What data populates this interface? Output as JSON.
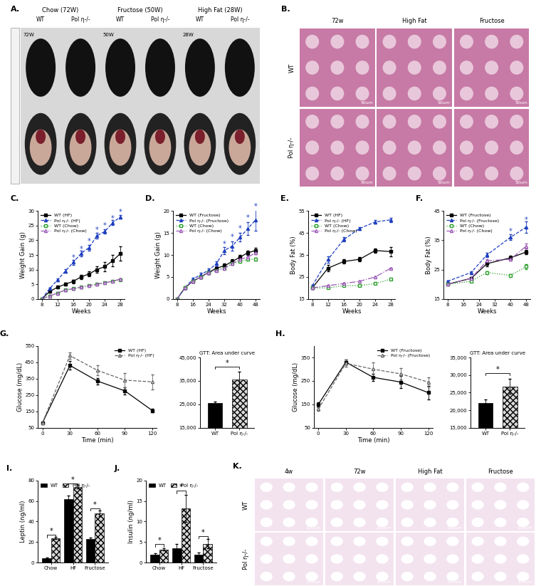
{
  "chart_data": [
    {
      "type": "line",
      "panel_label": "C.",
      "x_label": "Weeks",
      "y_label": "Weight Gain (g)",
      "x": [
        8,
        10,
        12,
        14,
        16,
        18,
        20,
        22,
        24,
        26,
        28
      ],
      "xlim": [
        7,
        29
      ],
      "xticks": [
        8,
        12,
        16,
        20,
        24,
        28
      ],
      "ylim": [
        0,
        30
      ],
      "yticks": [
        0,
        5,
        10,
        15,
        20,
        25,
        30
      ],
      "legend": "upper left",
      "series": [
        {
          "name": "WT (HF)",
          "color": "#000000",
          "marker": "square",
          "line_style": "solid",
          "values": [
            0,
            2.5,
            4,
            5,
            6,
            7.5,
            8.5,
            10,
            11,
            13,
            15.5
          ],
          "errors": [
            0,
            0.3,
            0.4,
            0.5,
            0.6,
            0.7,
            0.8,
            1,
            1.5,
            2,
            2.5
          ]
        },
        {
          "name": "Pol η-/- (HF)",
          "color": "#1f3fbf",
          "marker": "triangle",
          "line_style": "dashed",
          "values": [
            0,
            3.5,
            6.5,
            9.5,
            12.5,
            15.5,
            17.5,
            21.5,
            23,
            26,
            28
          ],
          "errors": [
            0,
            0.3,
            0.5,
            0.6,
            0.8,
            1,
            1,
            1,
            0.8,
            0.8,
            0.6
          ]
        },
        {
          "name": "WT (Chow)",
          "color": "#2ca02c",
          "marker": "open_square",
          "line_style": "dotted",
          "values": [
            0,
            1,
            2,
            3,
            3.5,
            4,
            4.5,
            5,
            5.5,
            6,
            6.5
          ],
          "errors": [
            0,
            0.3,
            0.3,
            0.3,
            0.3,
            0.3,
            0.3,
            0.3,
            0.3,
            0.3,
            0.3
          ]
        },
        {
          "name": "Pol η-/- (Chow)",
          "color": "#9b59b6",
          "marker": "open_triangle",
          "line_style": "dashdot",
          "values": [
            0,
            1,
            2,
            3,
            3.5,
            4,
            4.5,
            5,
            5.5,
            6,
            6.8
          ],
          "errors": [
            0,
            0.3,
            0.3,
            0.3,
            0.3,
            0.3,
            0.3,
            0.3,
            0.3,
            0.3,
            0.3
          ]
        }
      ],
      "annotations": [
        {
          "text": "*",
          "x": 16,
          "y": 14
        },
        {
          "text": "*",
          "x": 18,
          "y": 17
        },
        {
          "text": "*",
          "x": 20,
          "y": 19.5
        },
        {
          "text": "*",
          "x": 22,
          "y": 23.5
        },
        {
          "text": "*",
          "x": 24,
          "y": 25
        },
        {
          "text": "*",
          "x": 26,
          "y": 27.5
        },
        {
          "text": "*",
          "x": 28,
          "y": 29.5
        }
      ]
    },
    {
      "type": "line",
      "panel_label": "D.",
      "x_label": "Weeks",
      "y_label": "Weight Gain (g)",
      "x": [
        8,
        12,
        16,
        20,
        24,
        28,
        32,
        36,
        40,
        44,
        48
      ],
      "xlim": [
        6,
        50
      ],
      "xticks": [
        8,
        16,
        24,
        32,
        40,
        48
      ],
      "ylim": [
        0,
        20
      ],
      "yticks": [
        0,
        5,
        10,
        15,
        20
      ],
      "legend": "upper left",
      "series": [
        {
          "name": "WT (Fructose)",
          "color": "#000000",
          "marker": "square",
          "line_style": "solid",
          "values": [
            0,
            2.5,
            4,
            5,
            6,
            7,
            7.5,
            8.5,
            9.5,
            10.5,
            11
          ],
          "errors": [
            0,
            0.2,
            0.3,
            0.3,
            0.4,
            0.4,
            0.5,
            0.5,
            0.5,
            0.5,
            0.6
          ]
        },
        {
          "name": "Pol η-/- (Fructose)",
          "color": "#1f3fbf",
          "marker": "triangle",
          "line_style": "dashed",
          "values": [
            0,
            2.5,
            4.5,
            5.5,
            6.5,
            8,
            11,
            12,
            14,
            16,
            18
          ],
          "errors": [
            0,
            0.2,
            0.3,
            0.4,
            0.5,
            0.6,
            0.8,
            1,
            1,
            1.5,
            2.5
          ]
        },
        {
          "name": "WT (Chow)",
          "color": "#2ca02c",
          "marker": "open_square",
          "line_style": "dotted",
          "values": [
            0,
            2.5,
            4,
            5,
            6,
            6.5,
            7,
            8,
            8.5,
            9,
            9
          ],
          "errors": [
            0,
            0.2,
            0.3,
            0.3,
            0.3,
            0.3,
            0.3,
            0.3,
            0.3,
            0.3,
            0.3
          ]
        },
        {
          "name": "Pol η-/- (Chow)",
          "color": "#9b59b6",
          "marker": "open_triangle",
          "line_style": "dashdot",
          "values": [
            0,
            2.5,
            4,
            5,
            6,
            6.5,
            7,
            8,
            9,
            9.5,
            10.5
          ],
          "errors": [
            0,
            0.2,
            0.3,
            0.3,
            0.3,
            0.3,
            0.3,
            0.3,
            0.3,
            0.3,
            0.3
          ]
        }
      ],
      "annotations": [
        {
          "text": "*",
          "x": 32,
          "y": 12.5
        },
        {
          "text": "*",
          "x": 36,
          "y": 14
        },
        {
          "text": "*",
          "x": 40,
          "y": 16
        },
        {
          "text": "*",
          "x": 44,
          "y": 18.5
        },
        {
          "text": "*",
          "x": 48,
          "y": 21
        }
      ]
    },
    {
      "type": "line",
      "panel_label": "E.",
      "x_label": "Weeks",
      "y_label": "Body Fat (%)",
      "x": [
        8,
        12,
        16,
        20,
        24,
        28
      ],
      "xlim": [
        7,
        29
      ],
      "xticks": [
        8,
        12,
        16,
        20,
        24,
        28
      ],
      "ylim": [
        15,
        55
      ],
      "yticks": [
        15,
        25,
        35,
        45,
        55
      ],
      "legend": "upper left",
      "series": [
        {
          "name": "WT (HF)",
          "color": "#000000",
          "marker": "square",
          "line_style": "solid",
          "values": [
            20,
            29,
            32,
            33,
            37,
            36.5
          ],
          "errors": [
            0.5,
            1.5,
            1,
            1,
            1,
            2
          ]
        },
        {
          "name": "Pol η-/- (HF)",
          "color": "#1f3fbf",
          "marker": "triangle",
          "line_style": "dashed",
          "values": [
            21,
            33,
            42,
            47,
            50,
            51
          ],
          "errors": [
            0.5,
            1.5,
            1,
            0.8,
            0.8,
            1
          ]
        },
        {
          "name": "WT (Chow)",
          "color": "#2ca02c",
          "marker": "open_square",
          "line_style": "dotted",
          "values": [
            20,
            20,
            21,
            21,
            22,
            24
          ],
          "errors": [
            0.3,
            0.3,
            0.3,
            0.3,
            0.3,
            0.3
          ]
        },
        {
          "name": "Pol η-/- (Chow)",
          "color": "#9b59b6",
          "marker": "open_triangle",
          "line_style": "dashdot",
          "values": [
            20,
            21,
            22,
            23,
            25,
            29
          ],
          "errors": [
            0.3,
            0.3,
            0.3,
            0.3,
            0.3,
            0.3
          ]
        }
      ],
      "annotations": []
    },
    {
      "type": "line",
      "panel_label": "F.",
      "x_label": "Weeks",
      "y_label": "Body Fat (%)",
      "x": [
        8,
        20,
        28,
        40,
        48
      ],
      "xlim": [
        6,
        50
      ],
      "xticks": [
        8,
        16,
        24,
        32,
        40,
        48
      ],
      "ylim": [
        15,
        45
      ],
      "yticks": [
        15,
        25,
        35,
        45
      ],
      "legend": "upper left",
      "series": [
        {
          "name": "WT (Fructose)",
          "color": "#000000",
          "marker": "square",
          "line_style": "solid",
          "values": [
            20,
            22,
            27,
            29,
            31
          ],
          "errors": [
            0.3,
            0.5,
            0.8,
            0.8,
            0.8
          ]
        },
        {
          "name": "Pol η-/- (Fructose)",
          "color": "#1f3fbf",
          "marker": "triangle",
          "line_style": "dashed",
          "values": [
            21,
            24,
            30,
            36,
            39.5
          ],
          "errors": [
            0.3,
            0.5,
            0.8,
            1,
            2
          ]
        },
        {
          "name": "WT (Chow)",
          "color": "#2ca02c",
          "marker": "open_square",
          "line_style": "dotted",
          "values": [
            20,
            21,
            24,
            23,
            26
          ],
          "errors": [
            0.3,
            0.3,
            0.5,
            0.5,
            0.8
          ]
        },
        {
          "name": "Pol η-/- (Chow)",
          "color": "#9b59b6",
          "marker": "open_triangle",
          "line_style": "dashdot",
          "values": [
            20,
            22,
            28,
            28.5,
            33
          ],
          "errors": [
            0.3,
            0.3,
            0.5,
            0.5,
            0.8
          ]
        }
      ],
      "annotations": [
        {
          "text": "*",
          "x": 40,
          "y": 38
        },
        {
          "text": "*",
          "x": 48,
          "y": 42
        }
      ]
    },
    {
      "type": "line",
      "panel_label": "G.",
      "x_label": "Time (min)",
      "y_label": "Glucose (mg/dL)",
      "x": [
        0,
        30,
        60,
        90,
        120
      ],
      "xlim": [
        -5,
        125
      ],
      "xticks": [
        0,
        30,
        60,
        90,
        120
      ],
      "ylim": [
        50,
        550
      ],
      "yticks": [
        50,
        150,
        250,
        350,
        450,
        550
      ],
      "legend": "upper right",
      "series": [
        {
          "name": "WT (HF)",
          "color": "#000000",
          "marker": "square",
          "line_style": "solid",
          "values": [
            80,
            430,
            335,
            275,
            155
          ],
          "errors": [
            5,
            25,
            20,
            20,
            10
          ]
        },
        {
          "name": "Pol η-/- (HF)",
          "color": "#666666",
          "marker": "open_triangle",
          "line_style": "dashed",
          "values": [
            80,
            490,
            400,
            340,
            330
          ],
          "errors": [
            5,
            20,
            30,
            45,
            45
          ]
        }
      ],
      "annotations": []
    },
    {
      "type": "bar",
      "title": "GTT: Area under curve",
      "categories": [
        "WT",
        "Pol η-/-"
      ],
      "values": [
        25500,
        35500
      ],
      "errors": [
        800,
        3500
      ],
      "colors": [
        "#000000",
        "#d9d9d9"
      ],
      "ylim": [
        15000,
        45000
      ],
      "yticks": [
        {
          "value": 15000,
          "label": "15,000"
        },
        {
          "value": 25000,
          "label": "25,000"
        },
        {
          "value": 35000,
          "label": "35,000"
        },
        {
          "value": 45000,
          "label": "45,000"
        }
      ],
      "annotations": [
        {
          "text": "*",
          "y": 41000
        }
      ]
    },
    {
      "type": "line",
      "panel_label": "H.",
      "x_label": "Time (min)",
      "y_label": "Glucose (mg/dL)",
      "x": [
        0,
        30,
        60,
        90,
        120
      ],
      "xlim": [
        -5,
        125
      ],
      "xticks": [
        0,
        30,
        60,
        90,
        120
      ],
      "ylim": [
        50,
        400
      ],
      "yticks": [
        50,
        150,
        250,
        350
      ],
      "legend": "upper right",
      "series": [
        {
          "name": "WT (Fructose)",
          "color": "#000000",
          "marker": "square",
          "line_style": "solid",
          "values": [
            150,
            330,
            265,
            245,
            200
          ],
          "errors": [
            8,
            10,
            15,
            25,
            30
          ]
        },
        {
          "name": "Pol η-/- (Fructose)",
          "color": "#666666",
          "marker": "open_triangle",
          "line_style": "dashed",
          "values": [
            130,
            325,
            300,
            280,
            245
          ],
          "errors": [
            8,
            15,
            30,
            25,
            20
          ]
        }
      ],
      "annotations": []
    },
    {
      "type": "bar",
      "title": "GTT: Area under curve",
      "categories": [
        "WT",
        "Pol η-/-"
      ],
      "values": [
        22000,
        26800
      ],
      "errors": [
        1000,
        2200
      ],
      "colors": [
        "#000000",
        "#d9d9d9"
      ],
      "ylim": [
        15000,
        35000
      ],
      "yticks": [
        {
          "value": 15000,
          "label": "15,000"
        },
        {
          "value": 20000,
          "label": "20,000"
        },
        {
          "value": 25000,
          "label": "25,000"
        },
        {
          "value": 30000,
          "label": "30,000"
        },
        {
          "value": 35000,
          "label": "35,000"
        }
      ],
      "annotations": [
        {
          "text": "*",
          "y": 30500
        }
      ]
    },
    {
      "type": "bar",
      "panel_label": "I.",
      "y_label": "Leptin (ng/ml)",
      "categories": [
        "Chow",
        "HF",
        "Fructose"
      ],
      "ylim": [
        0,
        80
      ],
      "yticks": [
        0,
        20,
        40,
        60,
        80
      ],
      "legend": "upper left",
      "series": [
        {
          "name": "WT",
          "color": "#000000",
          "values": [
            4,
            62,
            23
          ],
          "errors": [
            1,
            3,
            1.5
          ]
        },
        {
          "name": "Pol η-/-",
          "color": "#d9d9d9",
          "values": [
            24,
            74,
            48
          ],
          "errors": [
            1,
            1.5,
            3
          ]
        }
      ],
      "annotations": [
        {
          "text": "*",
          "category": "Chow",
          "y": 27
        },
        {
          "text": "*",
          "category": "HF",
          "y": 77
        },
        {
          "text": "*",
          "category": "Fructose",
          "y": 53
        }
      ]
    },
    {
      "type": "bar",
      "panel_label": "J.",
      "y_label": "Insulin (ng/ml)",
      "categories": [
        "Chow",
        "HF",
        "Fructose"
      ],
      "ylim": [
        0,
        20
      ],
      "yticks": [
        0,
        5,
        10,
        15,
        20
      ],
      "legend": "upper left",
      "series": [
        {
          "name": "WT",
          "color": "#000000",
          "values": [
            2,
            3.5,
            2
          ],
          "errors": [
            0.2,
            1,
            0.5
          ]
        },
        {
          "name": "Pol η-/-",
          "color": "#d9d9d9",
          "values": [
            3.2,
            13.2,
            4.6
          ],
          "errors": [
            0.3,
            3.3,
            1.2
          ]
        }
      ],
      "annotations": [
        {
          "text": "*",
          "category": "Chow",
          "y": 4.5
        },
        {
          "text": "*",
          "category": "HF",
          "y": 17.5
        },
        {
          "text": "*",
          "category": "Fructose",
          "y": 6.5
        }
      ]
    }
  ],
  "image_panels": [
    {
      "panel_label": "A.",
      "groups": [
        "Chow (72W)",
        "Fructose (50W)",
        "High Fat (28W)"
      ],
      "column_labels": [
        "WT",
        "Pol η-/-",
        "WT",
        "Pol η-/-",
        "WT",
        "Pol η-/-"
      ],
      "age_labels": [
        "72W",
        "50W",
        "28W"
      ]
    },
    {
      "panel_label": "B.",
      "columns": [
        "72w",
        "High Fat",
        "Fructose"
      ],
      "rows": [
        "WT",
        "Pol η-/-"
      ],
      "scale_bar": "50um"
    },
    {
      "panel_label": "K.",
      "columns": [
        "4w",
        "72w",
        "High Fat",
        "Fructose"
      ],
      "rows": [
        "WT",
        "Pol η-/-"
      ],
      "scale_bar": "100um"
    }
  ]
}
